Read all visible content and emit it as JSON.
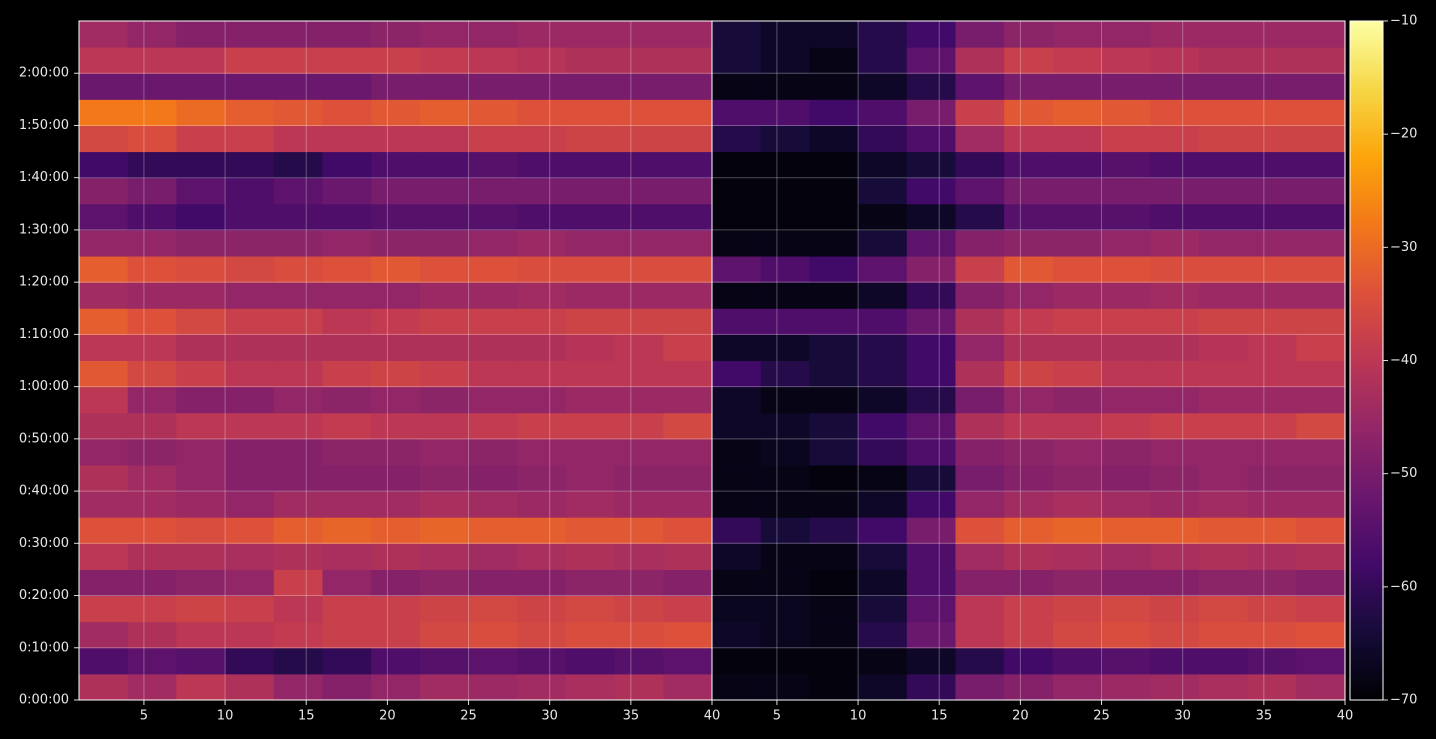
{
  "chart_data": [
    {
      "type": "heatmap",
      "x_bins": [
        1,
        4,
        7,
        10,
        13,
        16,
        19,
        22,
        25,
        28,
        31,
        34,
        37,
        40
      ],
      "y_bins": [
        0,
        300,
        600,
        900,
        1200,
        1500,
        1800,
        2100,
        2400,
        2700,
        3000,
        3300,
        3600,
        3900,
        4200,
        4500,
        4800,
        5100,
        5400,
        5700,
        6000,
        6300,
        6600,
        6900,
        7200,
        7500,
        7800
      ],
      "xlim": [
        1,
        40
      ],
      "ylim": [
        0,
        7800
      ],
      "xticks": [
        5,
        10,
        15,
        20,
        25,
        30,
        35,
        40
      ],
      "yticks": [
        {
          "value": 0,
          "label": "0:00:00"
        },
        {
          "value": 600,
          "label": "0:10:00"
        },
        {
          "value": 1200,
          "label": "0:20:00"
        },
        {
          "value": 1800,
          "label": "0:30:00"
        },
        {
          "value": 2400,
          "label": "0:40:00"
        },
        {
          "value": 3000,
          "label": "0:50:00"
        },
        {
          "value": 3600,
          "label": "1:00:00"
        },
        {
          "value": 4200,
          "label": "1:10:00"
        },
        {
          "value": 4800,
          "label": "1:20:00"
        },
        {
          "value": 5400,
          "label": "1:30:00"
        },
        {
          "value": 6000,
          "label": "1:40:00"
        },
        {
          "value": 6600,
          "label": "1:50:00"
        },
        {
          "value": 7200,
          "label": "2:00:00"
        }
      ],
      "grid": true,
      "values": [
        [
          -42,
          -44,
          -40,
          -42,
          -46,
          -48,
          -46,
          -44,
          -45,
          -44,
          -43,
          -42,
          -44
        ],
        [
          -56,
          -54,
          -55,
          -60,
          -62,
          -60,
          -56,
          -55,
          -54,
          -55,
          -56,
          -55,
          -54
        ],
        [
          -44,
          -42,
          -40,
          -40,
          -39,
          -38,
          -38,
          -36,
          -35,
          -36,
          -35,
          -35,
          -34
        ],
        [
          -38,
          -38,
          -37,
          -38,
          -40,
          -38,
          -38,
          -37,
          -36,
          -37,
          -36,
          -37,
          -38
        ],
        [
          -48,
          -48,
          -47,
          -46,
          -38,
          -46,
          -48,
          -47,
          -48,
          -48,
          -47,
          -47,
          -48
        ],
        [
          -40,
          -42,
          -42,
          -43,
          -42,
          -43,
          -42,
          -43,
          -44,
          -43,
          -42,
          -43,
          -42
        ],
        [
          -34,
          -34,
          -35,
          -34,
          -32,
          -31,
          -32,
          -31,
          -32,
          -32,
          -33,
          -33,
          -34
        ],
        [
          -44,
          -44,
          -45,
          -46,
          -44,
          -44,
          -44,
          -43,
          -44,
          -45,
          -44,
          -45,
          -45
        ],
        [
          -42,
          -44,
          -46,
          -48,
          -48,
          -48,
          -48,
          -47,
          -48,
          -47,
          -46,
          -47,
          -47
        ],
        [
          -46,
          -47,
          -46,
          -48,
          -48,
          -47,
          -47,
          -46,
          -47,
          -46,
          -46,
          -46,
          -46
        ],
        [
          -42,
          -42,
          -40,
          -40,
          -40,
          -39,
          -40,
          -40,
          -39,
          -38,
          -38,
          -38,
          -36
        ],
        [
          -40,
          -46,
          -48,
          -48,
          -46,
          -47,
          -46,
          -47,
          -46,
          -46,
          -45,
          -45,
          -45
        ],
        [
          -33,
          -36,
          -38,
          -40,
          -40,
          -38,
          -37,
          -38,
          -40,
          -40,
          -40,
          -40,
          -40
        ],
        [
          -40,
          -40,
          -42,
          -42,
          -42,
          -42,
          -42,
          -42,
          -42,
          -42,
          -41,
          -40,
          -38
        ],
        [
          -32,
          -34,
          -36,
          -38,
          -38,
          -40,
          -39,
          -38,
          -38,
          -38,
          -37,
          -37,
          -37
        ],
        [
          -44,
          -45,
          -45,
          -46,
          -46,
          -46,
          -46,
          -45,
          -45,
          -44,
          -45,
          -45,
          -45
        ],
        [
          -32,
          -34,
          -35,
          -36,
          -35,
          -34,
          -33,
          -34,
          -34,
          -35,
          -35,
          -35,
          -35
        ],
        [
          -46,
          -46,
          -47,
          -47,
          -47,
          -46,
          -47,
          -47,
          -46,
          -45,
          -46,
          -46,
          -46
        ],
        [
          -54,
          -56,
          -58,
          -56,
          -56,
          -56,
          -55,
          -55,
          -55,
          -56,
          -56,
          -56,
          -56
        ],
        [
          -48,
          -50,
          -54,
          -56,
          -54,
          -52,
          -50,
          -50,
          -50,
          -50,
          -50,
          -50,
          -50
        ],
        [
          -58,
          -60,
          -60,
          -60,
          -62,
          -58,
          -56,
          -56,
          -55,
          -56,
          -56,
          -56,
          -56
        ],
        [
          -36,
          -35,
          -38,
          -38,
          -40,
          -40,
          -40,
          -40,
          -38,
          -38,
          -37,
          -37,
          -37
        ],
        [
          -28,
          -28,
          -30,
          -32,
          -33,
          -34,
          -33,
          -32,
          -33,
          -34,
          -34,
          -34,
          -34
        ],
        [
          -52,
          -52,
          -52,
          -52,
          -52,
          -52,
          -50,
          -50,
          -50,
          -50,
          -50,
          -50,
          -50
        ],
        [
          -40,
          -40,
          -40,
          -38,
          -38,
          -38,
          -38,
          -39,
          -40,
          -41,
          -42,
          -42,
          -42
        ],
        [
          -44,
          -46,
          -48,
          -48,
          -48,
          -48,
          -47,
          -46,
          -46,
          -45,
          -45,
          -45,
          -45
        ]
      ]
    },
    {
      "type": "heatmap",
      "x_bins": [
        1,
        4,
        7,
        10,
        13,
        16,
        19,
        22,
        25,
        28,
        31,
        34,
        37,
        40
      ],
      "y_bins": [
        0,
        300,
        600,
        900,
        1200,
        1500,
        1800,
        2100,
        2400,
        2700,
        3000,
        3300,
        3600,
        3900,
        4200,
        4500,
        4800,
        5100,
        5400,
        5700,
        6000,
        6300,
        6600,
        6900,
        7200,
        7500,
        7800
      ],
      "xlim": [
        1,
        40
      ],
      "ylim": [
        0,
        7800
      ],
      "xticks": [
        5,
        10,
        15,
        20,
        25,
        30,
        35,
        40
      ],
      "grid": true,
      "values": [
        [
          -68,
          -68,
          -69,
          -66,
          -60,
          -50,
          -48,
          -46,
          -45,
          -44,
          -43,
          -42,
          -44
        ],
        [
          -69,
          -69,
          -69,
          -68,
          -66,
          -62,
          -58,
          -56,
          -55,
          -56,
          -56,
          -55,
          -54
        ],
        [
          -66,
          -67,
          -68,
          -62,
          -52,
          -40,
          -38,
          -36,
          -35,
          -36,
          -35,
          -35,
          -34
        ],
        [
          -67,
          -67,
          -68,
          -64,
          -54,
          -40,
          -38,
          -37,
          -36,
          -37,
          -36,
          -37,
          -38
        ],
        [
          -68,
          -68,
          -69,
          -66,
          -56,
          -48,
          -48,
          -47,
          -48,
          -48,
          -47,
          -47,
          -48
        ],
        [
          -66,
          -68,
          -68,
          -64,
          -56,
          -44,
          -42,
          -43,
          -44,
          -43,
          -42,
          -43,
          -42
        ],
        [
          -60,
          -64,
          -62,
          -58,
          -50,
          -34,
          -32,
          -31,
          -32,
          -32,
          -33,
          -33,
          -34
        ],
        [
          -68,
          -68,
          -68,
          -66,
          -58,
          -46,
          -44,
          -43,
          -44,
          -45,
          -44,
          -45,
          -45
        ],
        [
          -68,
          -68,
          -69,
          -68,
          -64,
          -50,
          -48,
          -47,
          -48,
          -47,
          -46,
          -47,
          -47
        ],
        [
          -68,
          -67,
          -64,
          -60,
          -56,
          -48,
          -47,
          -46,
          -47,
          -46,
          -46,
          -46,
          -46
        ],
        [
          -66,
          -66,
          -64,
          -58,
          -54,
          -42,
          -40,
          -40,
          -39,
          -38,
          -38,
          -38,
          -36
        ],
        [
          -66,
          -68,
          -68,
          -66,
          -62,
          -50,
          -46,
          -47,
          -46,
          -46,
          -45,
          -45,
          -45
        ],
        [
          -58,
          -62,
          -64,
          -62,
          -58,
          -42,
          -37,
          -38,
          -40,
          -40,
          -40,
          -40,
          -40
        ],
        [
          -66,
          -66,
          -64,
          -62,
          -58,
          -46,
          -42,
          -42,
          -42,
          -42,
          -41,
          -40,
          -38
        ],
        [
          -56,
          -56,
          -56,
          -56,
          -52,
          -42,
          -39,
          -38,
          -38,
          -38,
          -37,
          -37,
          -37
        ],
        [
          -68,
          -68,
          -68,
          -66,
          -60,
          -48,
          -46,
          -45,
          -45,
          -44,
          -45,
          -45,
          -45
        ],
        [
          -54,
          -56,
          -58,
          -54,
          -48,
          -38,
          -33,
          -34,
          -34,
          -35,
          -35,
          -35,
          -35
        ],
        [
          -68,
          -68,
          -68,
          -64,
          -54,
          -48,
          -47,
          -47,
          -46,
          -45,
          -46,
          -46,
          -46
        ],
        [
          -69,
          -69,
          -69,
          -68,
          -66,
          -62,
          -55,
          -55,
          -55,
          -56,
          -56,
          -56,
          -56
        ],
        [
          -69,
          -69,
          -69,
          -64,
          -58,
          -54,
          -50,
          -50,
          -50,
          -50,
          -50,
          -50,
          -50
        ],
        [
          -69,
          -69,
          -69,
          -66,
          -64,
          -60,
          -56,
          -56,
          -55,
          -56,
          -56,
          -56,
          -56
        ],
        [
          -62,
          -64,
          -66,
          -60,
          -56,
          -44,
          -40,
          -40,
          -38,
          -38,
          -37,
          -37,
          -37
        ],
        [
          -56,
          -56,
          -58,
          -56,
          -50,
          -38,
          -33,
          -32,
          -33,
          -34,
          -34,
          -34,
          -34
        ],
        [
          -68,
          -68,
          -68,
          -66,
          -62,
          -54,
          -50,
          -50,
          -50,
          -50,
          -50,
          -50,
          -50
        ],
        [
          -64,
          -66,
          -68,
          -62,
          -54,
          -42,
          -38,
          -39,
          -40,
          -41,
          -42,
          -42,
          -42
        ],
        [
          -64,
          -66,
          -66,
          -62,
          -58,
          -50,
          -47,
          -46,
          -46,
          -45,
          -45,
          -45,
          -45
        ]
      ]
    }
  ],
  "colorbar": {
    "colormap": "inferno",
    "clim": [
      -70,
      -10
    ],
    "ticks": [
      {
        "value": -70,
        "label": "−70"
      },
      {
        "value": -60,
        "label": "−60"
      },
      {
        "value": -50,
        "label": "−50"
      },
      {
        "value": -40,
        "label": "−40"
      },
      {
        "value": -30,
        "label": "−30"
      },
      {
        "value": -20,
        "label": "−20"
      },
      {
        "value": -10,
        "label": "−10"
      }
    ]
  }
}
